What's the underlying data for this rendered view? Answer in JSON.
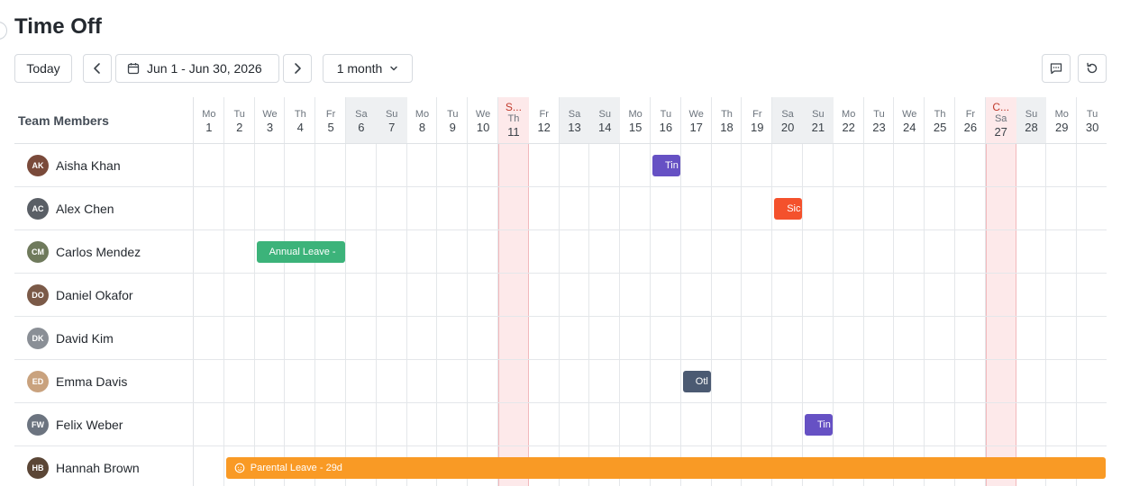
{
  "page": {
    "title": "Time Off"
  },
  "toolbar": {
    "today_label": "Today",
    "date_range": "Jun 1 - Jun 30, 2026",
    "view_label": "1 month"
  },
  "grid": {
    "members_header": "Team Members",
    "days": [
      {
        "dn": "Mo",
        "dd": "1"
      },
      {
        "dn": "Tu",
        "dd": "2"
      },
      {
        "dn": "We",
        "dd": "3"
      },
      {
        "dn": "Th",
        "dd": "4"
      },
      {
        "dn": "Fr",
        "dd": "5"
      },
      {
        "dn": "Sa",
        "dd": "6",
        "weekend": true
      },
      {
        "dn": "Su",
        "dd": "7",
        "weekend": true
      },
      {
        "dn": "Mo",
        "dd": "8"
      },
      {
        "dn": "Tu",
        "dd": "9"
      },
      {
        "dn": "We",
        "dd": "10"
      },
      {
        "dn": "Th",
        "dd": "11",
        "holiday": "S..."
      },
      {
        "dn": "Fr",
        "dd": "12"
      },
      {
        "dn": "Sa",
        "dd": "13",
        "weekend": true
      },
      {
        "dn": "Su",
        "dd": "14",
        "weekend": true
      },
      {
        "dn": "Mo",
        "dd": "15"
      },
      {
        "dn": "Tu",
        "dd": "16"
      },
      {
        "dn": "We",
        "dd": "17"
      },
      {
        "dn": "Th",
        "dd": "18"
      },
      {
        "dn": "Fr",
        "dd": "19"
      },
      {
        "dn": "Sa",
        "dd": "20",
        "weekend": true
      },
      {
        "dn": "Su",
        "dd": "21",
        "weekend": true
      },
      {
        "dn": "Mo",
        "dd": "22"
      },
      {
        "dn": "Tu",
        "dd": "23"
      },
      {
        "dn": "We",
        "dd": "24"
      },
      {
        "dn": "Th",
        "dd": "25"
      },
      {
        "dn": "Fr",
        "dd": "26"
      },
      {
        "dn": "Sa",
        "dd": "27",
        "holiday": "C..."
      },
      {
        "dn": "Su",
        "dd": "28",
        "weekend": true
      },
      {
        "dn": "Mo",
        "dd": "29"
      },
      {
        "dn": "Tu",
        "dd": "30"
      }
    ],
    "members": [
      {
        "name": "Aisha Khan",
        "initials": "AK",
        "color": "#7a4a3a"
      },
      {
        "name": "Alex Chen",
        "initials": "AC",
        "color": "#5a5f66"
      },
      {
        "name": "Carlos Mendez",
        "initials": "CM",
        "color": "#6f7a5c"
      },
      {
        "name": "Daniel Okafor",
        "initials": "DO",
        "color": "#7b5a48"
      },
      {
        "name": "David Kim",
        "initials": "DK",
        "color": "#8a8f96"
      },
      {
        "name": "Emma Davis",
        "initials": "ED",
        "color": "#c9a27e"
      },
      {
        "name": "Felix Weber",
        "initials": "FW",
        "color": "#6c7480"
      },
      {
        "name": "Hannah Brown",
        "initials": "HB",
        "color": "#5b4636"
      }
    ],
    "bars": [
      {
        "row": 0,
        "start": 16,
        "days": 1,
        "label": "Tin",
        "color": "#6651c4"
      },
      {
        "row": 1,
        "start": 20,
        "days": 1,
        "label": "Sic",
        "color": "#f4512c"
      },
      {
        "row": 2,
        "start": 3,
        "days": 3,
        "label": "Annual Leave -",
        "color": "#3cb37a"
      },
      {
        "row": 5,
        "start": 17,
        "days": 1,
        "label": "Otl",
        "color": "#4b5a72"
      },
      {
        "row": 6,
        "start": 21,
        "days": 1,
        "label": "Tin",
        "color": "#6651c4"
      },
      {
        "row": 7,
        "start": 2,
        "days": 29,
        "label": "Parental Leave - 29d",
        "color": "#f99a25",
        "icon": true
      }
    ]
  }
}
